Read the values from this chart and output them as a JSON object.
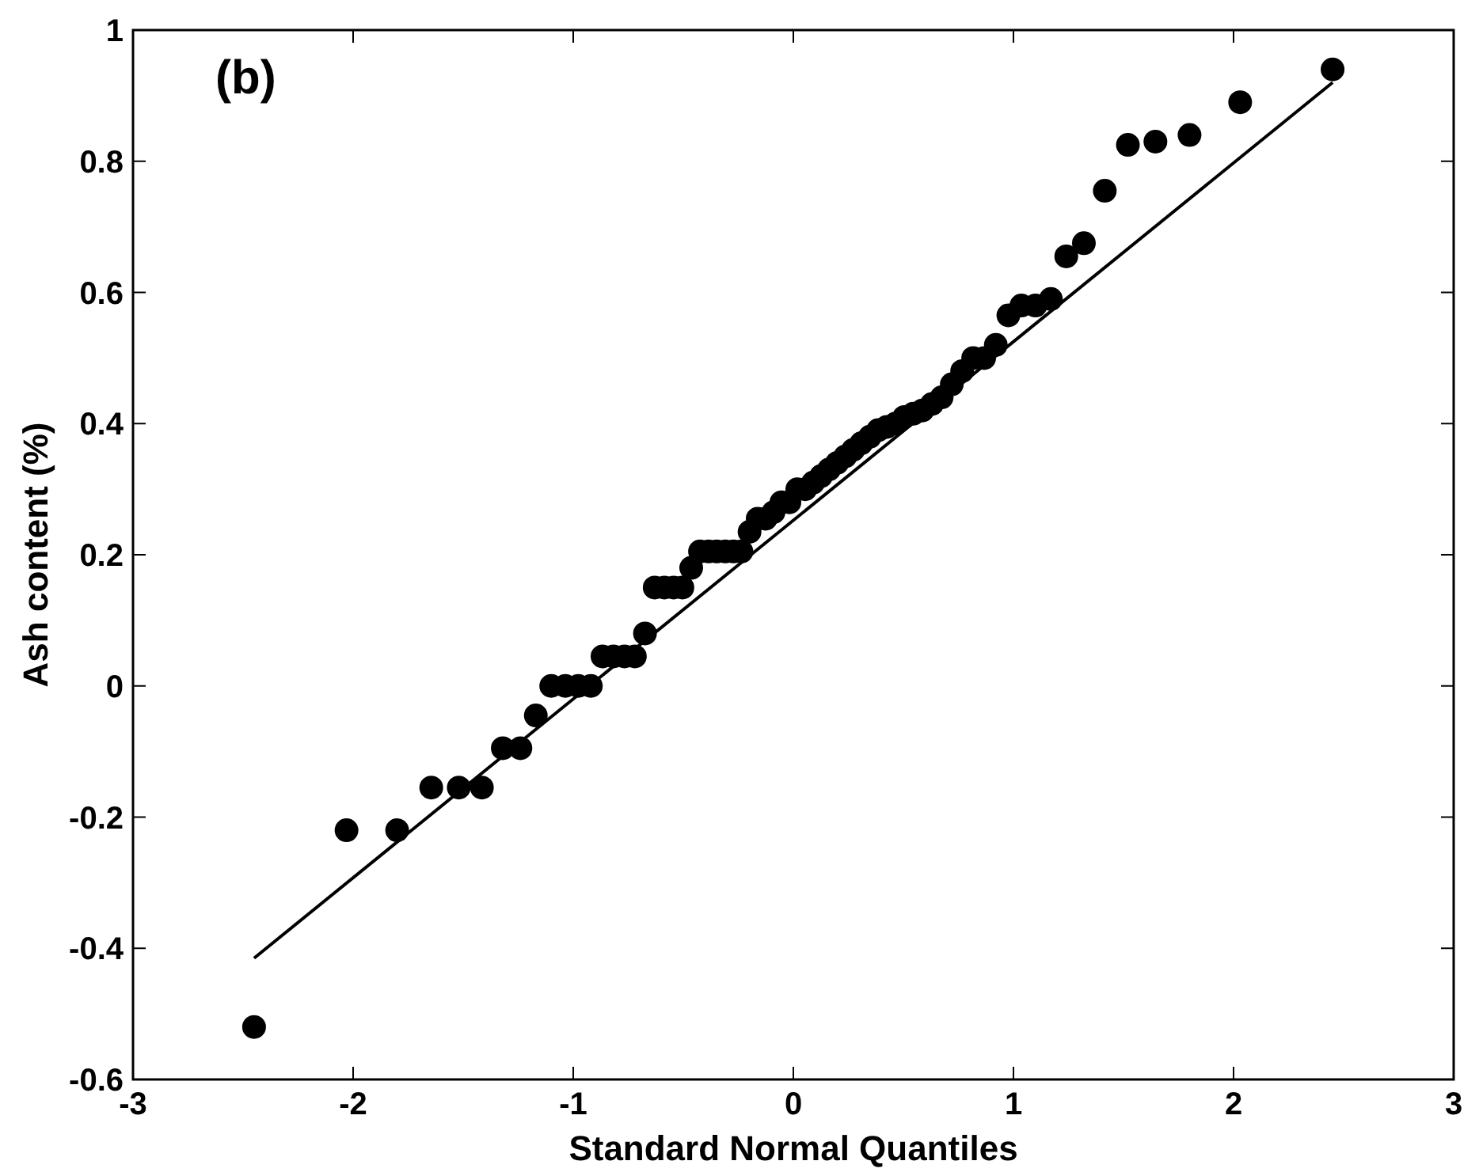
{
  "chart_data": {
    "type": "scatter",
    "xlabel": "Standard Normal Quantiles",
    "ylabel": "Ash content (%)",
    "annotations": [
      "(b)"
    ],
    "xlim": [
      -3,
      3
    ],
    "ylim": [
      -0.6,
      1
    ],
    "xticks": [
      -3,
      -2,
      -1,
      0,
      1,
      2,
      3
    ],
    "yticks": [
      -0.6,
      -0.4,
      -0.2,
      0,
      0.2,
      0.4,
      0.6,
      0.8,
      1
    ],
    "grid": false,
    "marker": "circle",
    "series": [
      {
        "color": "#000000",
        "x": [
          -2.45,
          -2.03,
          -1.8,
          -1.645,
          -1.52,
          -1.415,
          -1.32,
          -1.24,
          -1.17,
          -1.1,
          -1.036,
          -0.977,
          -0.92,
          -0.867,
          -0.817,
          -0.767,
          -0.72,
          -0.674,
          -0.63,
          -0.586,
          -0.544,
          -0.504,
          -0.464,
          -0.424,
          -0.385,
          -0.348,
          -0.309,
          -0.272,
          -0.236,
          -0.199,
          -0.162,
          -0.126,
          -0.09,
          -0.054,
          -0.018,
          0.018,
          0.054,
          0.09,
          0.126,
          0.162,
          0.199,
          0.236,
          0.272,
          0.309,
          0.348,
          0.385,
          0.424,
          0.464,
          0.504,
          0.544,
          0.586,
          0.63,
          0.674,
          0.72,
          0.767,
          0.817,
          0.867,
          0.92,
          0.977,
          1.036,
          1.1,
          1.17,
          1.24,
          1.32,
          1.415,
          1.52,
          1.645,
          1.8,
          2.03,
          2.45
        ],
        "values": [
          -0.52,
          -0.22,
          -0.22,
          -0.155,
          -0.155,
          -0.155,
          -0.095,
          -0.095,
          -0.045,
          0,
          0,
          0,
          0,
          0.045,
          0.045,
          0.045,
          0.045,
          0.08,
          0.15,
          0.15,
          0.15,
          0.15,
          0.18,
          0.205,
          0.205,
          0.205,
          0.205,
          0.205,
          0.205,
          0.235,
          0.255,
          0.255,
          0.265,
          0.28,
          0.28,
          0.3,
          0.3,
          0.31,
          0.32,
          0.33,
          0.34,
          0.35,
          0.36,
          0.37,
          0.38,
          0.39,
          0.395,
          0.4,
          0.41,
          0.415,
          0.42,
          0.43,
          0.44,
          0.46,
          0.48,
          0.5,
          0.5,
          0.52,
          0.565,
          0.58,
          0.58,
          0.59,
          0.655,
          0.675,
          0.755,
          0.825,
          0.83,
          0.84,
          0.89,
          0.94
        ]
      },
      {
        "type": "line",
        "color": "#000000",
        "line_style": "solid",
        "marker": "none",
        "x": [
          -2.45,
          2.45
        ],
        "values": [
          -0.415,
          0.92
        ]
      }
    ]
  }
}
